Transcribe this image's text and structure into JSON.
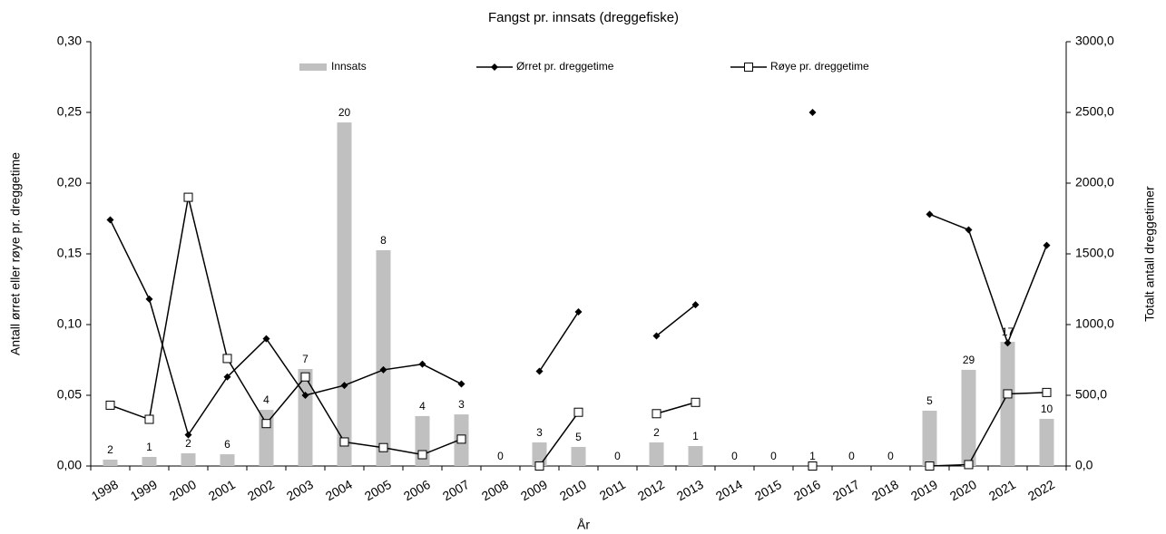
{
  "chart_data": {
    "type": "bar",
    "title": "Fangst pr. innsats (dreggefiske)",
    "x_label": "År",
    "y_label": "Antall ørret eller røye pr. dreggetime",
    "y2_label": "Totalt antall dreggetimer",
    "categories": [
      "1998",
      "1999",
      "2000",
      "2001",
      "2002",
      "2003",
      "2004",
      "2005",
      "2006",
      "2007",
      "2008",
      "2009",
      "2010",
      "2011",
      "2012",
      "2013",
      "2014",
      "2015",
      "2016",
      "2017",
      "2018",
      "2019",
      "2020",
      "2021",
      "2022"
    ],
    "series": [
      {
        "name": "Innsats",
        "type": "bar",
        "axis": "y2",
        "color": "#c0c0c0",
        "values": [
          45,
          64,
          90,
          83,
          397,
          686,
          2429,
          1526,
          353,
          365,
          0,
          167,
          135,
          0,
          167,
          141,
          0,
          0,
          0,
          0,
          0,
          391,
          680,
          878,
          333
        ],
        "annotations": [
          2,
          1,
          2,
          6,
          4,
          7,
          20,
          8,
          4,
          3,
          0,
          3,
          5,
          0,
          2,
          1,
          0,
          0,
          1,
          0,
          0,
          5,
          29,
          17,
          10
        ]
      },
      {
        "name": "Ørret pr. dreggetime",
        "type": "line",
        "marker": "diamond",
        "color": "#000000",
        "values": [
          0.174,
          0.118,
          0.022,
          0.063,
          0.09,
          0.05,
          0.057,
          0.068,
          0.072,
          0.058,
          null,
          0.067,
          0.109,
          null,
          0.092,
          0.114,
          null,
          null,
          0.25,
          null,
          null,
          0.178,
          0.167,
          0.087,
          0.156
        ]
      },
      {
        "name": "Røye pr. dreggetime",
        "type": "line",
        "marker": "square",
        "color": "#000000",
        "values": [
          0.043,
          0.033,
          0.19,
          0.076,
          0.03,
          0.063,
          0.017,
          0.013,
          0.008,
          0.019,
          null,
          0.0,
          0.038,
          null,
          0.037,
          0.045,
          null,
          null,
          0.0,
          null,
          null,
          0.0,
          0.001,
          0.051,
          0.052
        ]
      }
    ],
    "ylim": [
      0,
      0.3
    ],
    "yticks": [
      {
        "value": 0,
        "label": "0,00"
      },
      {
        "value": 0.05,
        "label": "0,05"
      },
      {
        "value": 0.1,
        "label": "0,10"
      },
      {
        "value": 0.15,
        "label": "0,15"
      },
      {
        "value": 0.2,
        "label": "0,20"
      },
      {
        "value": 0.25,
        "label": "0,25"
      },
      {
        "value": 0.3,
        "label": "0,30"
      }
    ],
    "y2lim": [
      0,
      3000
    ],
    "y2ticks": [
      {
        "value": 0,
        "label": "0,0"
      },
      {
        "value": 500,
        "label": "500,0"
      },
      {
        "value": 1000,
        "label": "1000,0"
      },
      {
        "value": 1500,
        "label": "1500,0"
      },
      {
        "value": 2000,
        "label": "2000,0"
      },
      {
        "value": 2500,
        "label": "2500,0"
      },
      {
        "value": 3000,
        "label": "3000,0"
      }
    ],
    "grid": false,
    "legend": "top"
  }
}
